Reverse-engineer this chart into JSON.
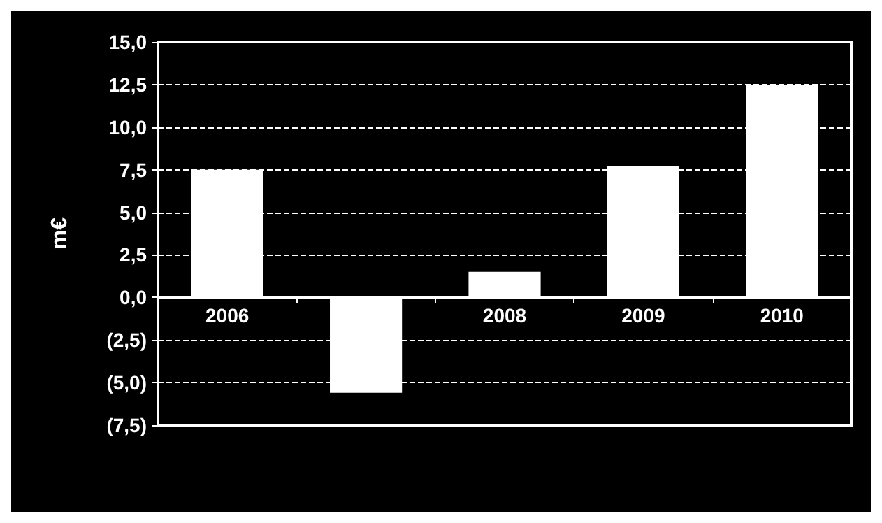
{
  "chart_data": {
    "type": "bar",
    "ylabel": "m€",
    "categories": [
      "2006",
      null,
      "2008",
      "2009",
      "2010"
    ],
    "values": [
      7.5,
      -5.6,
      1.5,
      7.7,
      12.5
    ],
    "color": "#ffffff",
    "ylim": [
      -7.5,
      15
    ],
    "yticks": [
      {
        "value": -7.5,
        "label": "(7,5)"
      },
      {
        "value": -5,
        "label": "(5,0)"
      },
      {
        "value": -2.5,
        "label": "(2,5)"
      },
      {
        "value": 0,
        "label": "0,0"
      },
      {
        "value": 2.5,
        "label": "2,5"
      },
      {
        "value": 5,
        "label": "5,0"
      },
      {
        "value": 7.5,
        "label": "7,5"
      },
      {
        "value": 10,
        "label": "10,0"
      },
      {
        "value": 12.5,
        "label": "12,5"
      },
      {
        "value": 15,
        "label": "15,0"
      }
    ],
    "grid": "y"
  }
}
